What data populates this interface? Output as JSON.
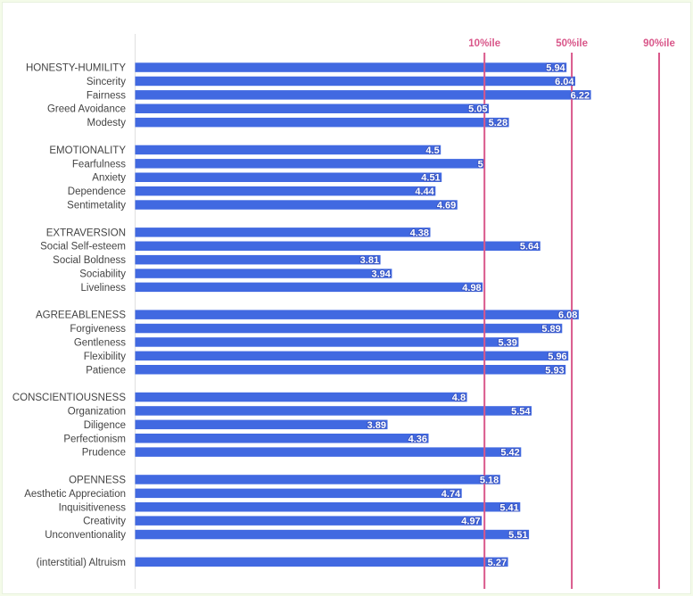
{
  "chart_data": {
    "type": "bar",
    "orientation": "horizontal",
    "title": "",
    "xlabel": "",
    "ylabel": "",
    "xlim": [
      1,
      7
    ],
    "grid": false,
    "colors": {
      "bar": "#4169e1",
      "reference_line": "#d9578a",
      "label": "#444444",
      "axis": "#e0e0e0"
    },
    "reference_lines": [
      {
        "label": "10%ile",
        "value": 5.0
      },
      {
        "label": "50%ile",
        "value": 6.0
      },
      {
        "label": "90%ile",
        "value": 7.0
      }
    ],
    "groups": [
      {
        "name": "HONESTY-HUMILITY",
        "items": [
          {
            "label": "HONESTY-HUMILITY",
            "value": 5.94,
            "display": "5.94"
          },
          {
            "label": "Sincerity",
            "value": 6.04,
            "display": "6.04"
          },
          {
            "label": "Fairness",
            "value": 6.22,
            "display": "6.22"
          },
          {
            "label": "Greed Avoidance",
            "value": 5.05,
            "display": "5.05"
          },
          {
            "label": "Modesty",
            "value": 5.28,
            "display": "5.28"
          }
        ]
      },
      {
        "name": "EMOTIONALITY",
        "items": [
          {
            "label": "EMOTIONALITY",
            "value": 4.5,
            "display": "4.5"
          },
          {
            "label": "Fearfulness",
            "value": 5.0,
            "display": "5"
          },
          {
            "label": "Anxiety",
            "value": 4.51,
            "display": "4.51"
          },
          {
            "label": "Dependence",
            "value": 4.44,
            "display": "4.44"
          },
          {
            "label": "Sentimetality",
            "value": 4.69,
            "display": "4.69"
          }
        ]
      },
      {
        "name": "EXTRAVERSION",
        "items": [
          {
            "label": "EXTRAVERSION",
            "value": 4.38,
            "display": "4.38"
          },
          {
            "label": "Social Self-esteem",
            "value": 5.64,
            "display": "5.64"
          },
          {
            "label": "Social Boldness",
            "value": 3.81,
            "display": "3.81"
          },
          {
            "label": "Sociability",
            "value": 3.94,
            "display": "3.94"
          },
          {
            "label": "Liveliness",
            "value": 4.98,
            "display": "4.98"
          }
        ]
      },
      {
        "name": "AGREEABLENESS",
        "items": [
          {
            "label": "AGREEABLENESS",
            "value": 6.08,
            "display": "6.08"
          },
          {
            "label": "Forgiveness",
            "value": 5.89,
            "display": "5.89"
          },
          {
            "label": "Gentleness",
            "value": 5.39,
            "display": "5.39"
          },
          {
            "label": "Flexibility",
            "value": 5.96,
            "display": "5.96"
          },
          {
            "label": "Patience",
            "value": 5.93,
            "display": "5.93"
          }
        ]
      },
      {
        "name": "CONSCIENTIOUSNESS",
        "items": [
          {
            "label": "CONSCIENTIOUSNESS",
            "value": 4.8,
            "display": "4.8"
          },
          {
            "label": "Organization",
            "value": 5.54,
            "display": "5.54"
          },
          {
            "label": "Diligence",
            "value": 3.89,
            "display": "3.89"
          },
          {
            "label": "Perfectionism",
            "value": 4.36,
            "display": "4.36"
          },
          {
            "label": "Prudence",
            "value": 5.42,
            "display": "5.42"
          }
        ]
      },
      {
        "name": "OPENNESS",
        "items": [
          {
            "label": "OPENNESS",
            "value": 5.18,
            "display": "5.18"
          },
          {
            "label": "Aesthetic Appreciation",
            "value": 4.74,
            "display": "4.74"
          },
          {
            "label": "Inquisitiveness",
            "value": 5.41,
            "display": "5.41"
          },
          {
            "label": "Creativity",
            "value": 4.97,
            "display": "4.97"
          },
          {
            "label": "Unconventionality",
            "value": 5.51,
            "display": "5.51"
          }
        ]
      },
      {
        "name": "(interstitial)",
        "items": [
          {
            "label": "(interstitial) Altruism",
            "value": 5.27,
            "display": "5.27"
          }
        ]
      }
    ]
  }
}
